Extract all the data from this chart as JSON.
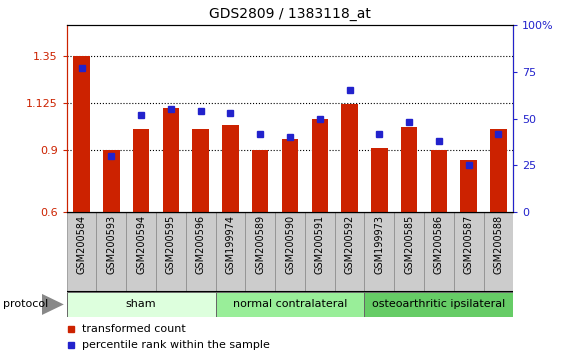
{
  "title": "GDS2809 / 1383118_at",
  "samples": [
    "GSM200584",
    "GSM200593",
    "GSM200594",
    "GSM200595",
    "GSM200596",
    "GSM199974",
    "GSM200589",
    "GSM200590",
    "GSM200591",
    "GSM200592",
    "GSM199973",
    "GSM200585",
    "GSM200586",
    "GSM200587",
    "GSM200588"
  ],
  "bar_values": [
    1.35,
    0.9,
    1.0,
    1.1,
    1.0,
    1.02,
    0.9,
    0.95,
    1.05,
    1.12,
    0.91,
    1.01,
    0.9,
    0.85,
    1.0
  ],
  "dot_values": [
    77,
    30,
    52,
    55,
    54,
    53,
    42,
    40,
    50,
    65,
    42,
    48,
    38,
    25,
    42
  ],
  "bar_color": "#cc2200",
  "dot_color": "#2222cc",
  "ylim_left": [
    0.6,
    1.5
  ],
  "ylim_right": [
    0,
    100
  ],
  "yticks_left": [
    0.6,
    0.9,
    1.125,
    1.35
  ],
  "yticks_left_labels": [
    "0.6",
    "0.9",
    "1.125",
    "1.35"
  ],
  "yticks_right": [
    0,
    25,
    50,
    75,
    100
  ],
  "yticks_right_labels": [
    "0",
    "25",
    "50",
    "75",
    "100%"
  ],
  "groups": [
    {
      "label": "sham",
      "start": 0,
      "end": 4,
      "color": "#ddffdd"
    },
    {
      "label": "normal contralateral",
      "start": 5,
      "end": 9,
      "color": "#99ee99"
    },
    {
      "label": "osteoarthritic ipsilateral",
      "start": 10,
      "end": 14,
      "color": "#66cc66"
    }
  ],
  "protocol_label": "protocol",
  "legend_bar_label": "transformed count",
  "legend_dot_label": "percentile rank within the sample",
  "hlines": [
    0.9,
    1.125,
    1.35
  ],
  "axis_color_left": "#cc2200",
  "axis_color_right": "#2222cc",
  "xtick_bg": "#cccccc",
  "xtick_border": "#888888"
}
